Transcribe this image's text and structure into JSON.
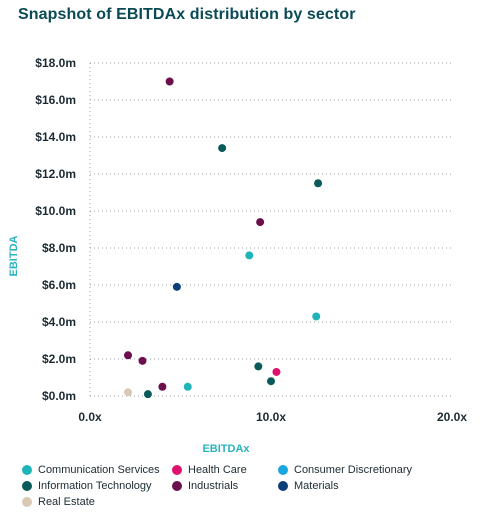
{
  "title": "Snapshot of EBITDAx distribution by sector",
  "chart_data": {
    "type": "scatter",
    "title": "Snapshot of EBITDAx distribution by sector",
    "xlabel": "EBITDAx",
    "ylabel": "EBITDA",
    "xlim": [
      0,
      20
    ],
    "ylim": [
      0,
      18
    ],
    "x_ticks": [
      "0.0x",
      "10.0x",
      "20.0x"
    ],
    "x_tick_values": [
      0,
      10,
      20
    ],
    "y_ticks": [
      "$0.0m",
      "$2.0m",
      "$4.0m",
      "$6.0m",
      "$8.0m",
      "$10.0m",
      "$12.0m",
      "$14.0m",
      "$16.0m",
      "$18.0m"
    ],
    "y_tick_values": [
      0,
      2,
      4,
      6,
      8,
      10,
      12,
      14,
      16,
      18
    ],
    "grid": "horizontal dotted",
    "legend_position": "bottom",
    "series": [
      {
        "name": "Communication Services",
        "color": "#1fb5b8",
        "points": [
          {
            "x": 5.4,
            "y": 0.5
          },
          {
            "x": 8.8,
            "y": 7.6
          },
          {
            "x": 12.5,
            "y": 4.3
          }
        ]
      },
      {
        "name": "Health Care",
        "color": "#e0106e",
        "points": [
          {
            "x": 10.3,
            "y": 1.3
          }
        ]
      },
      {
        "name": "Consumer Discretionary",
        "color": "#1aa6e0",
        "points": []
      },
      {
        "name": "Information Technology",
        "color": "#0b5a5a",
        "points": [
          {
            "x": 7.3,
            "y": 13.4
          },
          {
            "x": 12.6,
            "y": 11.5
          },
          {
            "x": 9.3,
            "y": 1.6
          },
          {
            "x": 10.0,
            "y": 0.8
          },
          {
            "x": 3.2,
            "y": 0.1
          }
        ]
      },
      {
        "name": "Industrials",
        "color": "#6b0f4d",
        "points": [
          {
            "x": 4.4,
            "y": 17.0
          },
          {
            "x": 9.4,
            "y": 9.4
          },
          {
            "x": 2.1,
            "y": 2.2
          },
          {
            "x": 2.9,
            "y": 1.9
          },
          {
            "x": 4.0,
            "y": 0.5
          }
        ]
      },
      {
        "name": "Materials",
        "color": "#0d3e7a",
        "points": [
          {
            "x": 4.8,
            "y": 5.9
          }
        ]
      },
      {
        "name": "Real Estate",
        "color": "#d8c8b4",
        "points": [
          {
            "x": 2.1,
            "y": 0.2
          }
        ]
      }
    ]
  }
}
